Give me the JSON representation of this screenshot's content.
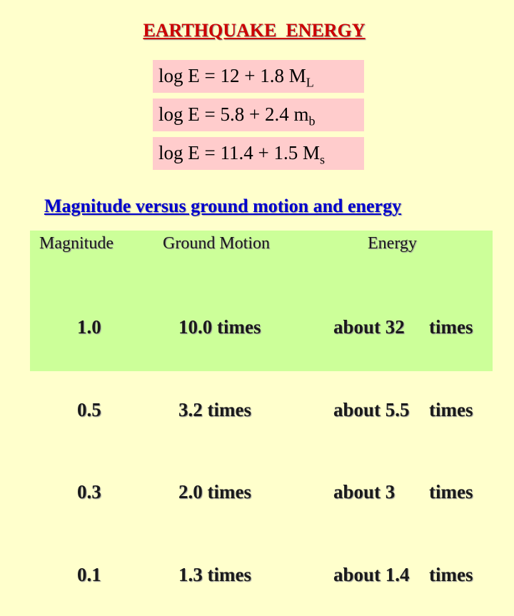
{
  "title": "EARTHQUAKE  ENERGY",
  "equations": [
    {
      "main": "log E = 12 + 1.8 M",
      "sub": "L"
    },
    {
      "main": "log E = 5.8 + 2.4 m",
      "sub": "b"
    },
    {
      "main": "log E = 11.4 + 1.5 M",
      "sub": "s"
    }
  ],
  "subtitle": "Magnitude versus ground motion and energy",
  "table": {
    "headers": [
      "Magnitude",
      "Ground Motion",
      "Energy"
    ],
    "rows": [
      {
        "magnitude": "1.0",
        "ground_motion": "10.0 times",
        "energy": "about 32",
        "energy_unit": "times"
      },
      {
        "magnitude": "0.5",
        "ground_motion": "3.2 times",
        "energy": "about 5.5",
        "energy_unit": "times"
      },
      {
        "magnitude": "0.3",
        "ground_motion": "2.0 times",
        "energy": "about 3",
        "energy_unit": "times"
      },
      {
        "magnitude": "0.1",
        "ground_motion": "1.3 times",
        "energy": "about 1.4",
        "energy_unit": "times"
      }
    ]
  },
  "colors": {
    "background": "#ffffcc",
    "title": "#cc0000",
    "subtitle": "#0000cc",
    "equation_box": "#ffcccc",
    "table_box": "#ccff99"
  }
}
